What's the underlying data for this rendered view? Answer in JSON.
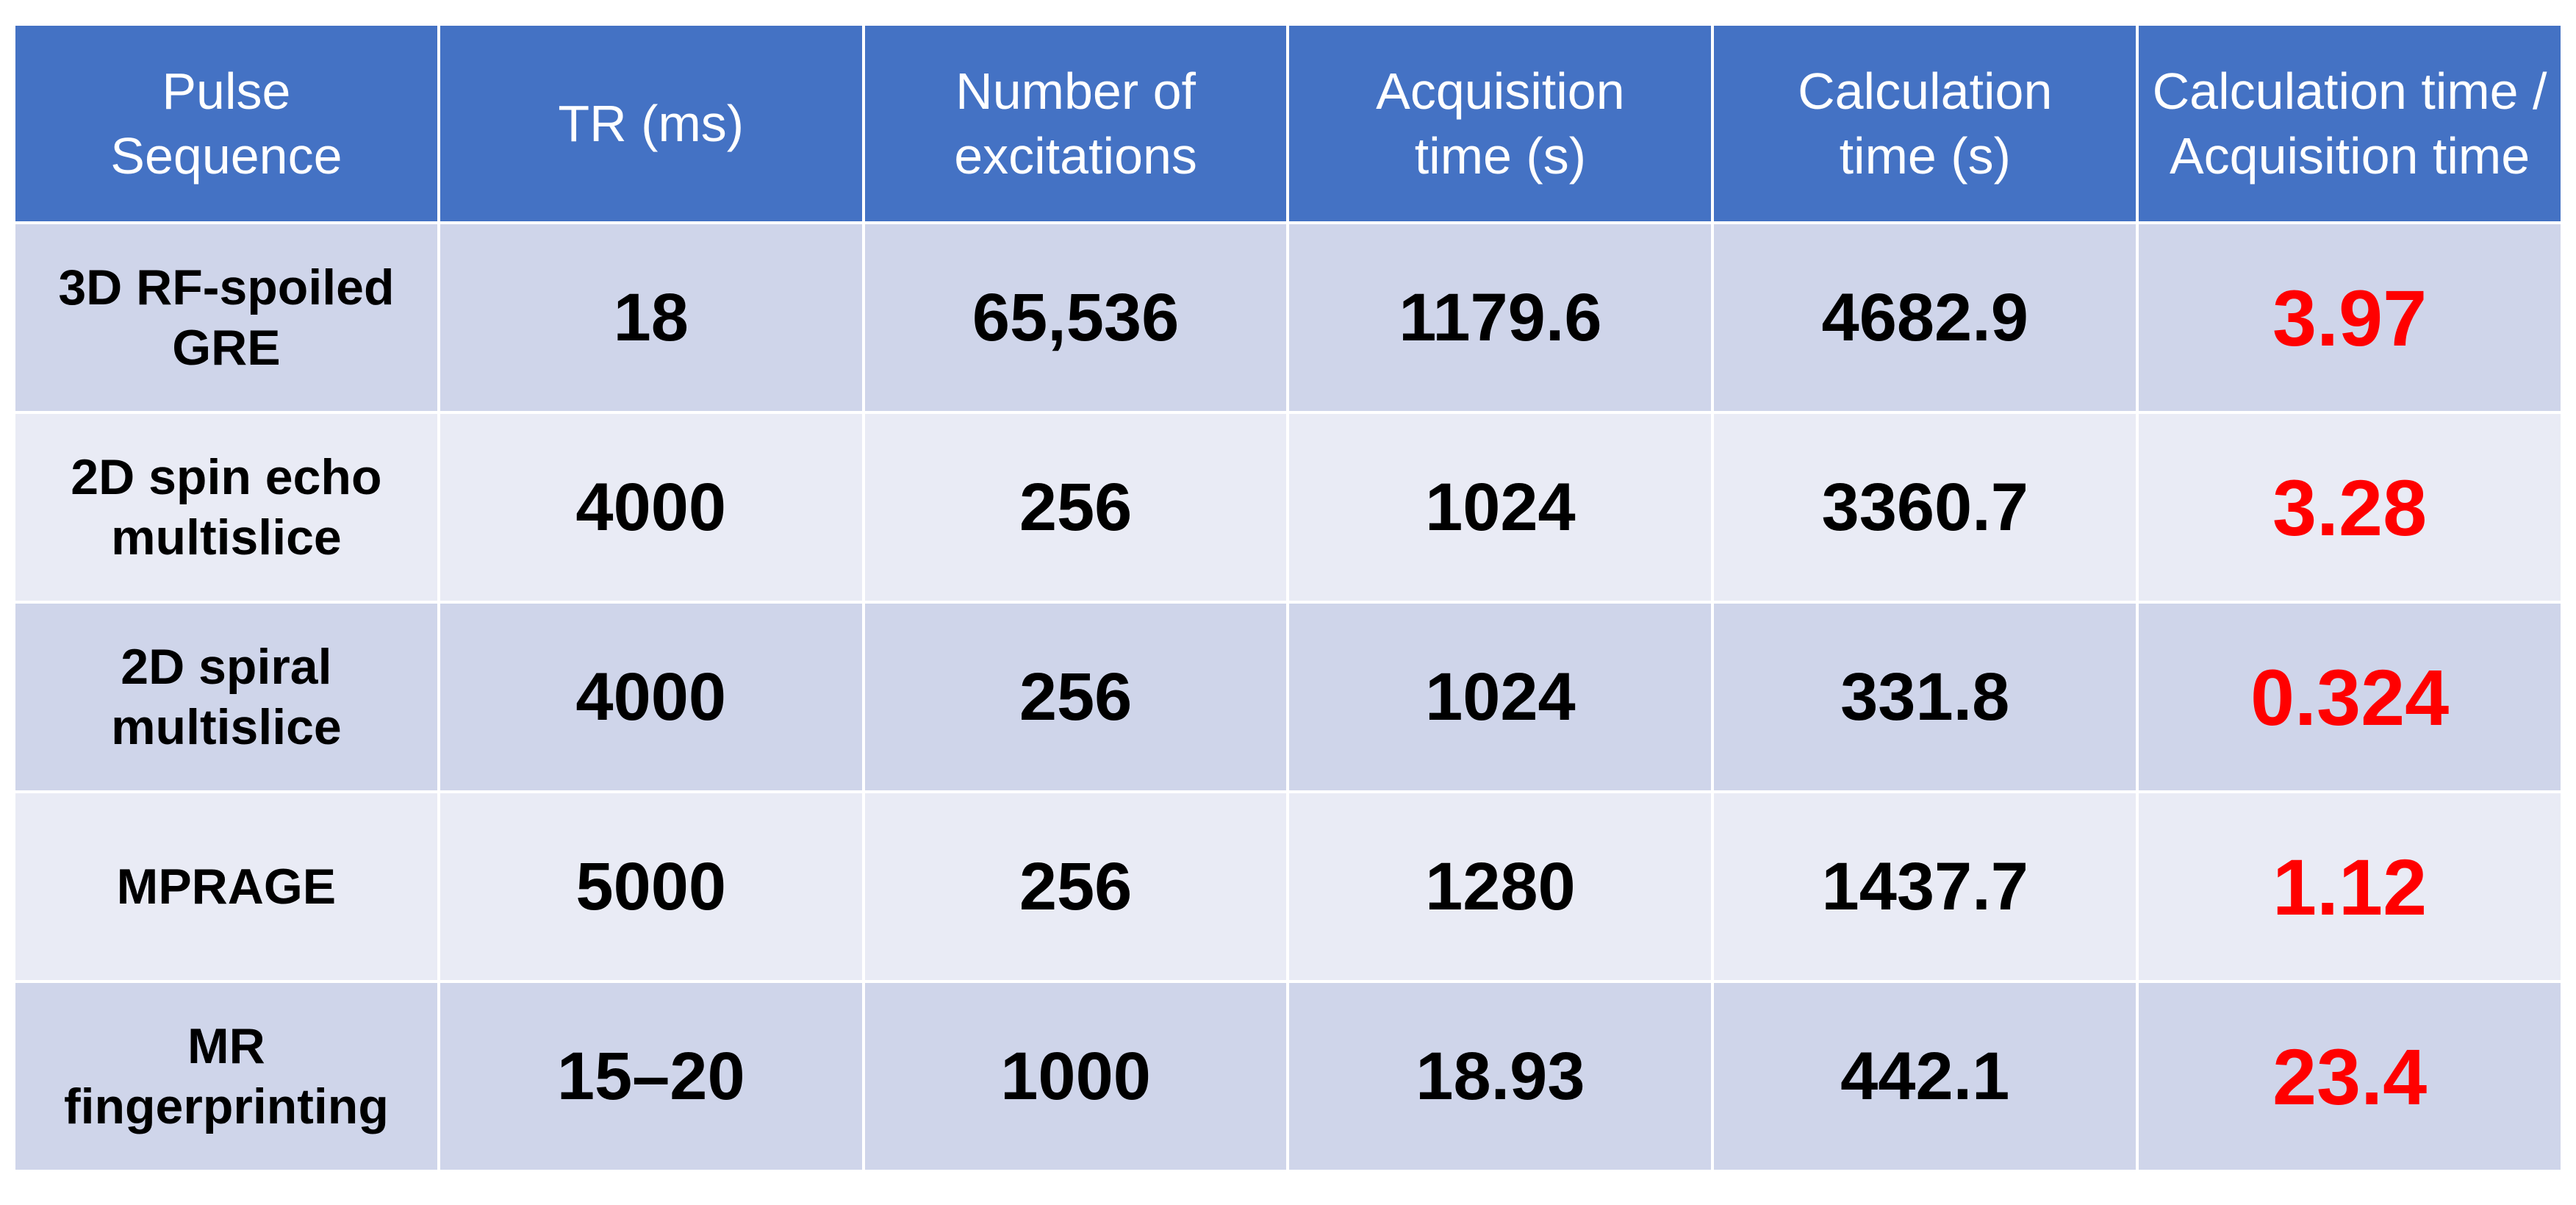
{
  "table": {
    "columns": [
      "Pulse\nSequence",
      "TR (ms)",
      "Number of\nexcitations",
      "Acquisition\ntime (s)",
      "Calculation\ntime (s)",
      "Calculation time /\nAcquisition time"
    ],
    "rows": [
      {
        "sequence": "3D RF-spoiled\nGRE",
        "tr": "18",
        "excitations": "65,536",
        "acquisition": "1179.6",
        "calculation": "4682.9",
        "ratio": "3.97"
      },
      {
        "sequence": "2D spin echo\nmultislice",
        "tr": "4000",
        "excitations": "256",
        "acquisition": "1024",
        "calculation": "3360.7",
        "ratio": "3.28"
      },
      {
        "sequence": "2D spiral\nmultislice",
        "tr": "4000",
        "excitations": "256",
        "acquisition": "1024",
        "calculation": "331.8",
        "ratio": "0.324"
      },
      {
        "sequence": "MPRAGE",
        "tr": "5000",
        "excitations": "256",
        "acquisition": "1280",
        "calculation": "1437.7",
        "ratio": "1.12"
      },
      {
        "sequence": "MR\nfingerprinting",
        "tr": "15–20",
        "excitations": "1000",
        "acquisition": "18.93",
        "calculation": "442.1",
        "ratio": "23.4"
      }
    ]
  },
  "colors": {
    "header_bg": "#4472c4",
    "row_dark": "#cfd5ea",
    "row_light": "#e9ebf5",
    "ratio_text": "#ff0000"
  }
}
